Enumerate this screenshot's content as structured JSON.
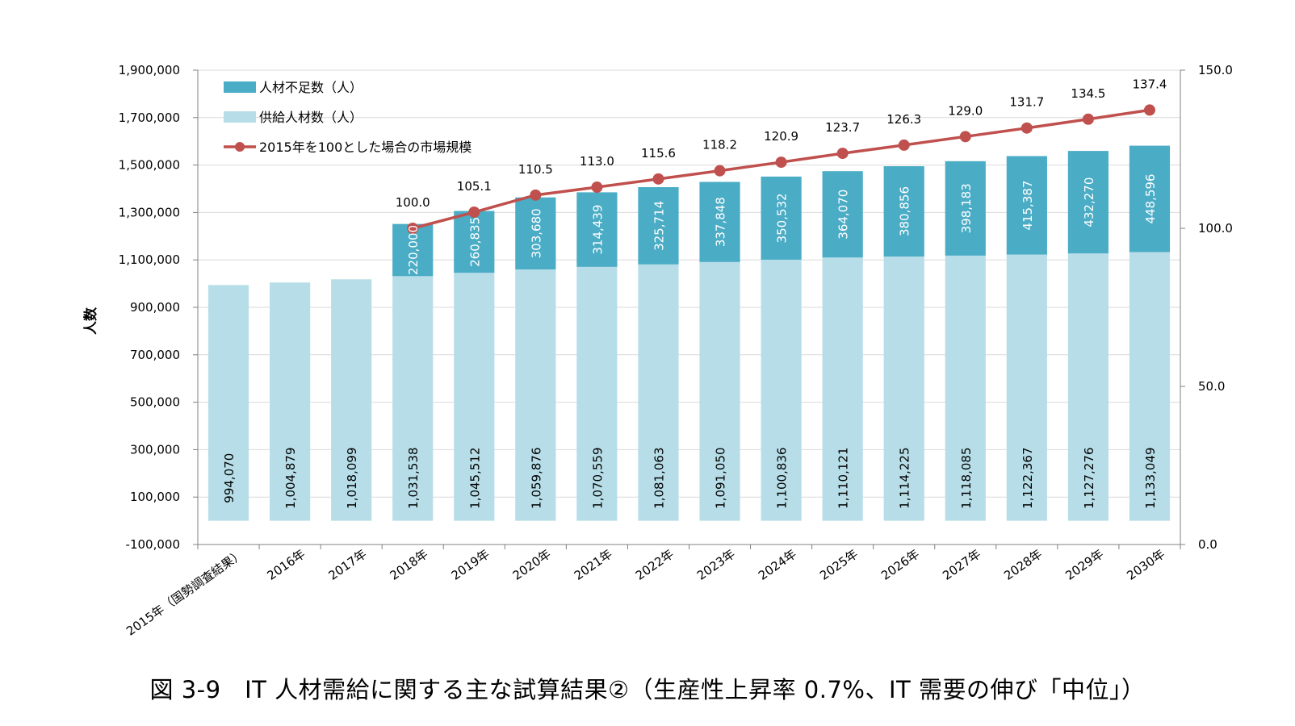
{
  "caption": "図 3-9　IT 人材需給に関する主な試算結果②（生産性上昇率 0.7%、IT 需要の伸び「中位」）",
  "colors": {
    "shortage": "#4BACC6",
    "supply": "#B7DEE8",
    "line": "#C0504D",
    "axis": "#808080"
  },
  "chart_data": {
    "type": "bar",
    "stacked": true,
    "categories": [
      "2015年（国勢調査結果）",
      "2016年",
      "2017年",
      "2018年",
      "2019年",
      "2020年",
      "2021年",
      "2022年",
      "2023年",
      "2024年",
      "2025年",
      "2026年",
      "2027年",
      "2028年",
      "2029年",
      "2030年"
    ],
    "ylabel": "人数",
    "ylim": [
      -100000,
      1900000
    ],
    "yticks": [
      -100000,
      100000,
      300000,
      500000,
      700000,
      900000,
      1100000,
      1300000,
      1500000,
      1700000,
      1900000
    ],
    "ytick_labels": [
      "-100,000",
      "100,000",
      "300,000",
      "500,000",
      "700,000",
      "900,000",
      "1,100,000",
      "1,300,000",
      "1,500,000",
      "1,700,000",
      "1,900,000"
    ],
    "y2lim": [
      0,
      150
    ],
    "y2ticks": [
      0,
      50,
      100,
      150
    ],
    "y2tick_labels": [
      "0.0",
      "50.0",
      "100.0",
      "150.0"
    ],
    "legend_position": "top-left",
    "grid": "horizontal",
    "series": [
      {
        "name": "人材不足数（人）",
        "kind": "bar",
        "color": "#4BACC6",
        "values": [
          null,
          null,
          null,
          220000,
          260835,
          303680,
          314439,
          325714,
          337848,
          350532,
          364070,
          380856,
          398183,
          415387,
          432270,
          448596
        ],
        "labels": [
          "",
          "",
          "",
          "220,000",
          "260,835",
          "303,680",
          "314,439",
          "325,714",
          "337,848",
          "350,532",
          "364,070",
          "380,856",
          "398,183",
          "415,387",
          "432,270",
          "448,596"
        ]
      },
      {
        "name": "供給人材数（人）",
        "kind": "bar",
        "color": "#B7DEE8",
        "values": [
          994070,
          1004879,
          1018099,
          1031538,
          1045512,
          1059876,
          1070559,
          1081063,
          1091050,
          1100836,
          1110121,
          1114225,
          1118085,
          1122367,
          1127276,
          1133049
        ],
        "labels": [
          "994,070",
          "1,004,879",
          "1,018,099",
          "1,031,538",
          "1,045,512",
          "1,059,876",
          "1,070,559",
          "1,081,063",
          "1,091,050",
          "1,100,836",
          "1,110,121",
          "1,114,225",
          "1,118,085",
          "1,122,367",
          "1,127,276",
          "1,133,049"
        ]
      },
      {
        "name": "2015年を100とした場合の市場規模",
        "kind": "line",
        "axis": "right",
        "color": "#C0504D",
        "values": [
          null,
          null,
          null,
          100.0,
          105.1,
          110.5,
          113.0,
          115.6,
          118.2,
          120.9,
          123.7,
          126.3,
          129.0,
          131.7,
          134.5,
          137.4
        ],
        "labels": [
          "",
          "",
          "",
          "100.0",
          "105.1",
          "110.5",
          "113.0",
          "115.6",
          "118.2",
          "120.9",
          "123.7",
          "126.3",
          "129.0",
          "131.7",
          "134.5",
          "137.4"
        ]
      }
    ]
  }
}
